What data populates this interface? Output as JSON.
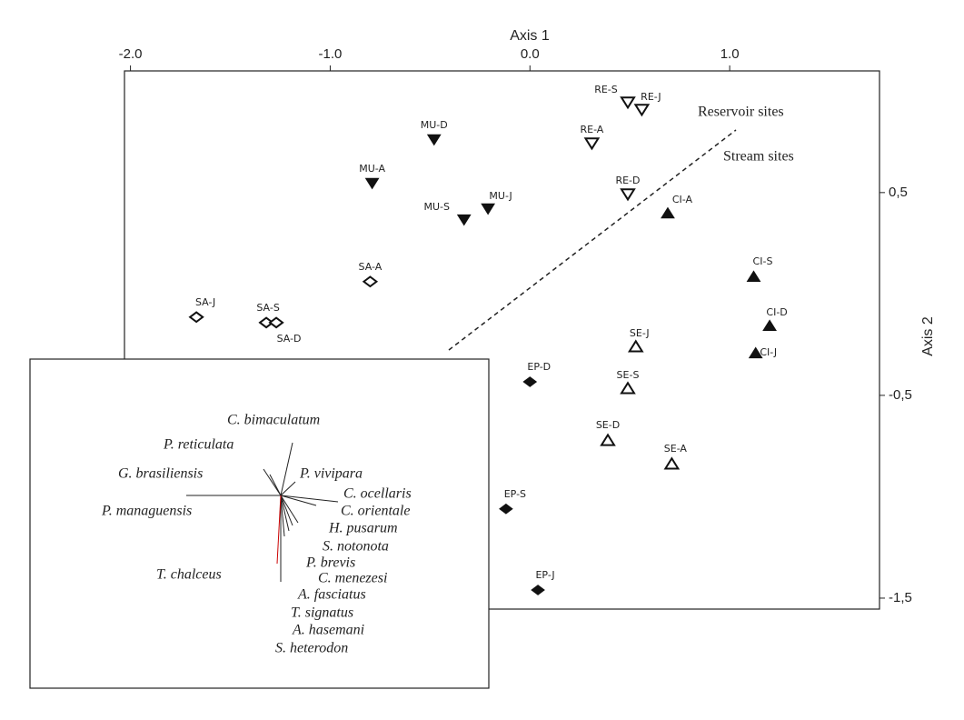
{
  "chart_data": {
    "type": "scatter",
    "xlabel": "Axis 1",
    "ylabel": "Axis 2",
    "xlim": [
      -2.03,
      1.75
    ],
    "ylim": [
      -1.554,
      1.1
    ],
    "xticks": [
      {
        "value": -2,
        "label": "-2.0"
      },
      {
        "value": -1,
        "label": "-1.0"
      },
      {
        "value": 0,
        "label": "0.0"
      },
      {
        "value": 1,
        "label": "1.0"
      }
    ],
    "yticks": [
      {
        "value": 0.5,
        "label": "0,5"
      },
      {
        "value": -0.5,
        "label": "-0,5"
      },
      {
        "value": -1.5,
        "label": "-1,5"
      }
    ],
    "annotations": [
      "Reservoir sites",
      "Stream sites"
    ],
    "points": [
      {
        "label": "RE-S",
        "x": 0.49,
        "y": 0.944,
        "marker": "open-down"
      },
      {
        "label": "RE-J",
        "x": 0.56,
        "y": 0.908,
        "marker": "open-down"
      },
      {
        "label": "RE-A",
        "x": 0.31,
        "y": 0.742,
        "marker": "open-down"
      },
      {
        "label": "RE-D",
        "x": 0.49,
        "y": 0.491,
        "marker": "open-down"
      },
      {
        "label": "MU-D",
        "x": -0.48,
        "y": 0.76,
        "marker": "filled-down"
      },
      {
        "label": "MU-A",
        "x": -0.79,
        "y": 0.545,
        "marker": "filled-down"
      },
      {
        "label": "MU-S",
        "x": -0.33,
        "y": 0.365,
        "marker": "filled-down"
      },
      {
        "label": "MU-J",
        "x": -0.21,
        "y": 0.419,
        "marker": "filled-down"
      },
      {
        "label": "CI-A",
        "x": 0.69,
        "y": 0.4,
        "marker": "filled-up"
      },
      {
        "label": "CI-S",
        "x": 1.12,
        "y": 0.087,
        "marker": "filled-up"
      },
      {
        "label": "CI-D",
        "x": 1.2,
        "y": -0.155,
        "marker": "filled-up"
      },
      {
        "label": "CI-J",
        "x": 1.13,
        "y": -0.29,
        "marker": "filled-up"
      },
      {
        "label": "SE-J",
        "x": 0.53,
        "y": -0.258,
        "marker": "open-up"
      },
      {
        "label": "SE-S",
        "x": 0.49,
        "y": -0.464,
        "marker": "open-up"
      },
      {
        "label": "SE-D",
        "x": 0.39,
        "y": -0.72,
        "marker": "open-up"
      },
      {
        "label": "SE-A",
        "x": 0.71,
        "y": -0.836,
        "marker": "open-up"
      },
      {
        "label": "SA-A",
        "x": -0.8,
        "y": 0.061,
        "marker": "open-diamond"
      },
      {
        "label": "SA-J",
        "x": -1.67,
        "y": -0.114,
        "marker": "open-diamond"
      },
      {
        "label": "SA-S",
        "x": -1.32,
        "y": -0.141,
        "marker": "open-diamond"
      },
      {
        "label": "SA-D",
        "x": -1.27,
        "y": -0.141,
        "marker": "open-diamond"
      },
      {
        "label": "EP-D",
        "x": 0.0,
        "y": -0.433,
        "marker": "filled-diamond"
      },
      {
        "label": "EP-S",
        "x": -0.12,
        "y": -1.06,
        "marker": "filled-diamond"
      },
      {
        "label": "EP-J",
        "x": 0.04,
        "y": -1.46,
        "marker": "filled-diamond"
      }
    ],
    "inset": {
      "species": [
        "C. bimaculatum",
        "P. reticulata",
        "G. brasiliensis",
        "P. vivipara",
        "C. ocellaris",
        "P. managuensis",
        "C. orientale",
        "H. pusarum",
        "S. notonota",
        "T. chalceus",
        "P. brevis",
        "C. menezesi",
        "A. fasciatus",
        "T. signatus",
        "A. hasemani",
        "S. heterodon"
      ]
    }
  }
}
